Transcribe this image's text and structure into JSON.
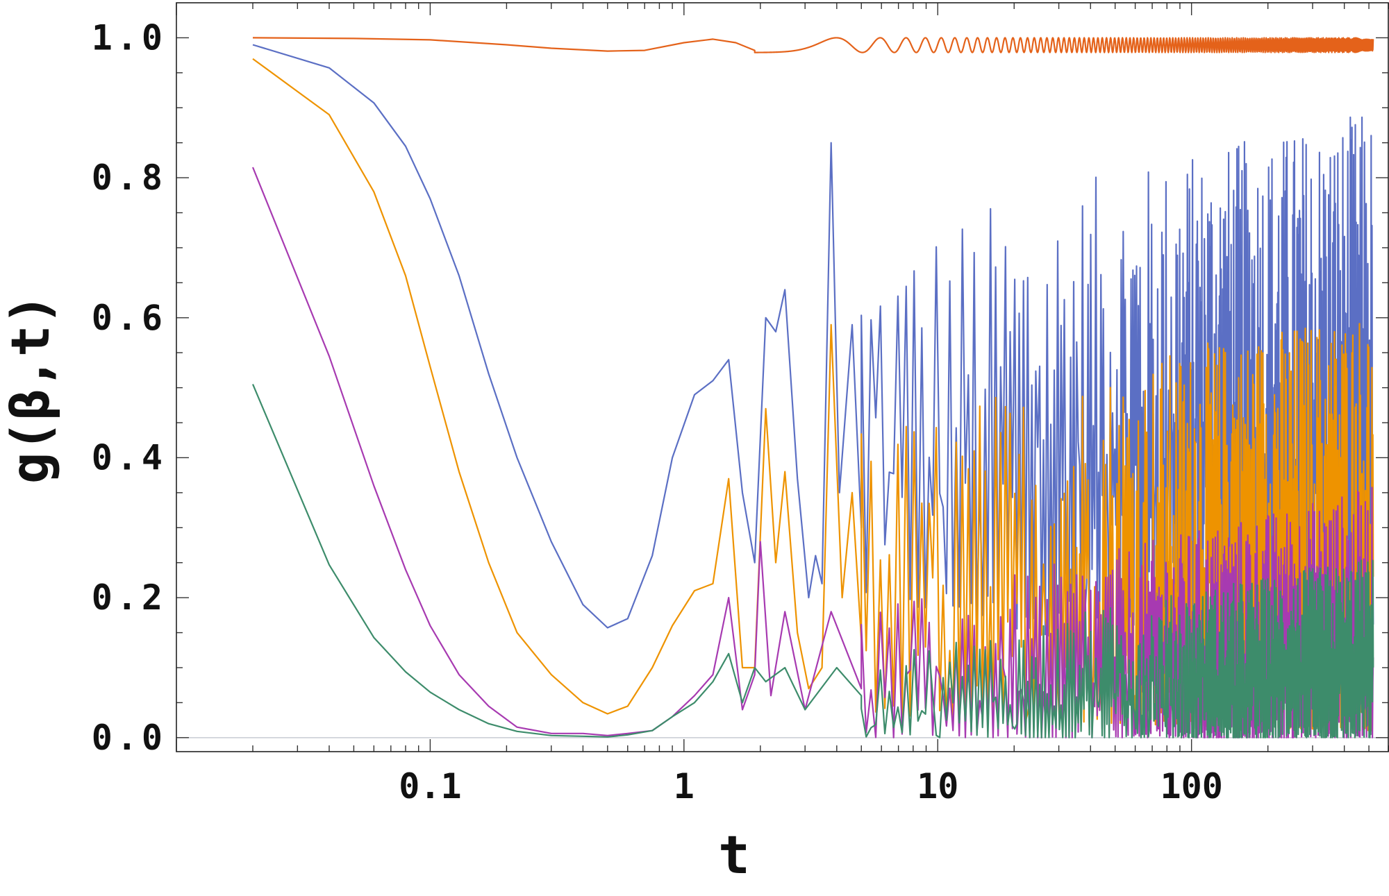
{
  "chart_data": {
    "type": "line",
    "title": "",
    "xlabel": "t",
    "ylabel": "g(β,t)",
    "xscale": "log",
    "xlim": [
      0.01,
      600
    ],
    "ylim": [
      -0.02,
      1.05
    ],
    "x_ticks": [
      {
        "value": 0.1,
        "label": "0.1"
      },
      {
        "value": 1,
        "label": "1"
      },
      {
        "value": 10,
        "label": "10"
      },
      {
        "value": 100,
        "label": "100"
      }
    ],
    "y_ticks": [
      {
        "value": 0.0,
        "label": "0.0"
      },
      {
        "value": 0.2,
        "label": "0.2"
      },
      {
        "value": 0.4,
        "label": "0.4"
      },
      {
        "value": 0.6,
        "label": "0.6"
      },
      {
        "value": 0.8,
        "label": "0.8"
      },
      {
        "value": 1.0,
        "label": "1.0"
      }
    ],
    "grid": false,
    "legend": "none",
    "series": [
      {
        "color": "#e4621a",
        "points": [
          [
            0.02,
            1.0
          ],
          [
            0.05,
            0.999
          ],
          [
            0.1,
            0.997
          ],
          [
            0.2,
            0.99
          ],
          [
            0.3,
            0.985
          ],
          [
            0.5,
            0.981
          ],
          [
            0.7,
            0.982
          ],
          [
            1.0,
            0.993
          ],
          [
            1.3,
            0.998
          ],
          [
            1.6,
            0.993
          ],
          [
            1.9,
            0.982
          ]
        ],
        "oscillation": {
          "t_start": 1.9,
          "t_end": 520,
          "low": 0.979,
          "high": 1.0,
          "note_period": "decreasing"
        }
      },
      {
        "color": "#5b6fc4",
        "points": [
          [
            0.02,
            0.99
          ],
          [
            0.04,
            0.957
          ],
          [
            0.06,
            0.907
          ],
          [
            0.08,
            0.845
          ],
          [
            0.1,
            0.77
          ],
          [
            0.13,
            0.66
          ],
          [
            0.17,
            0.52
          ],
          [
            0.22,
            0.4
          ],
          [
            0.3,
            0.28
          ],
          [
            0.4,
            0.19
          ],
          [
            0.5,
            0.157
          ],
          [
            0.6,
            0.17
          ],
          [
            0.75,
            0.26
          ],
          [
            0.9,
            0.4
          ],
          [
            1.1,
            0.49
          ],
          [
            1.3,
            0.51
          ],
          [
            1.5,
            0.54
          ],
          [
            1.7,
            0.35
          ],
          [
            1.9,
            0.25
          ],
          [
            2.1,
            0.6
          ],
          [
            2.3,
            0.58
          ],
          [
            2.5,
            0.64
          ],
          [
            2.8,
            0.37
          ],
          [
            3.1,
            0.2
          ],
          [
            3.3,
            0.26
          ],
          [
            3.5,
            0.22
          ],
          [
            3.8,
            0.85
          ],
          [
            4.1,
            0.35
          ],
          [
            4.6,
            0.59
          ],
          [
            5.0,
            0.3
          ]
        ],
        "oscillation": {
          "t_start": 5.0,
          "t_end": 520,
          "low_start": 0.2,
          "low_end": 0.05,
          "high_start": 0.72,
          "high_end": 0.9
        }
      },
      {
        "color": "#ee9300",
        "points": [
          [
            0.02,
            0.97
          ],
          [
            0.04,
            0.89
          ],
          [
            0.06,
            0.78
          ],
          [
            0.08,
            0.66
          ],
          [
            0.1,
            0.53
          ],
          [
            0.13,
            0.38
          ],
          [
            0.17,
            0.25
          ],
          [
            0.22,
            0.15
          ],
          [
            0.3,
            0.09
          ],
          [
            0.4,
            0.05
          ],
          [
            0.5,
            0.034
          ],
          [
            0.6,
            0.045
          ],
          [
            0.75,
            0.1
          ],
          [
            0.9,
            0.16
          ],
          [
            1.1,
            0.21
          ],
          [
            1.3,
            0.22
          ],
          [
            1.5,
            0.37
          ],
          [
            1.7,
            0.1
          ],
          [
            1.9,
            0.1
          ],
          [
            2.1,
            0.47
          ],
          [
            2.3,
            0.25
          ],
          [
            2.5,
            0.38
          ],
          [
            2.8,
            0.15
          ],
          [
            3.1,
            0.07
          ],
          [
            3.5,
            0.1
          ],
          [
            3.8,
            0.59
          ],
          [
            4.2,
            0.2
          ],
          [
            4.6,
            0.35
          ],
          [
            5.0,
            0.14
          ]
        ],
        "oscillation": {
          "t_start": 5.0,
          "t_end": 520,
          "low_start": 0.03,
          "low_end": 0.01,
          "high_start": 0.45,
          "high_end": 0.62
        }
      },
      {
        "color": "#a73ab1",
        "points": [
          [
            0.02,
            0.815
          ],
          [
            0.04,
            0.545
          ],
          [
            0.06,
            0.36
          ],
          [
            0.08,
            0.24
          ],
          [
            0.1,
            0.16
          ],
          [
            0.13,
            0.09
          ],
          [
            0.17,
            0.045
          ],
          [
            0.22,
            0.015
          ],
          [
            0.3,
            0.006
          ],
          [
            0.4,
            0.006
          ],
          [
            0.5,
            0.003
          ],
          [
            0.6,
            0.006
          ],
          [
            0.75,
            0.01
          ],
          [
            0.9,
            0.03
          ],
          [
            1.1,
            0.06
          ],
          [
            1.3,
            0.09
          ],
          [
            1.5,
            0.2
          ],
          [
            1.7,
            0.04
          ],
          [
            1.9,
            0.09
          ],
          [
            2.0,
            0.28
          ],
          [
            2.2,
            0.06
          ],
          [
            2.5,
            0.18
          ],
          [
            3.0,
            0.04
          ],
          [
            3.8,
            0.18
          ],
          [
            5.0,
            0.07
          ]
        ],
        "oscillation": {
          "t_start": 5.0,
          "t_end": 520,
          "low_start": 0.0,
          "low_end": 0.0,
          "high_start": 0.18,
          "high_end": 0.36
        }
      },
      {
        "color": "#3d8c6b",
        "points": [
          [
            0.02,
            0.505
          ],
          [
            0.04,
            0.247
          ],
          [
            0.06,
            0.143
          ],
          [
            0.08,
            0.094
          ],
          [
            0.1,
            0.065
          ],
          [
            0.13,
            0.04
          ],
          [
            0.17,
            0.02
          ],
          [
            0.22,
            0.009
          ],
          [
            0.3,
            0.003
          ],
          [
            0.4,
            0.002
          ],
          [
            0.5,
            0.001
          ],
          [
            0.6,
            0.004
          ],
          [
            0.75,
            0.01
          ],
          [
            0.9,
            0.03
          ],
          [
            1.1,
            0.05
          ],
          [
            1.3,
            0.08
          ],
          [
            1.5,
            0.12
          ],
          [
            1.7,
            0.05
          ],
          [
            1.9,
            0.1
          ],
          [
            2.1,
            0.08
          ],
          [
            2.5,
            0.1
          ],
          [
            3.0,
            0.04
          ],
          [
            4.0,
            0.1
          ],
          [
            5.0,
            0.06
          ]
        ],
        "oscillation": {
          "t_start": 5.0,
          "t_end": 520,
          "low_start": 0.0,
          "low_end": 0.0,
          "high_start": 0.12,
          "high_end": 0.26
        }
      }
    ]
  }
}
